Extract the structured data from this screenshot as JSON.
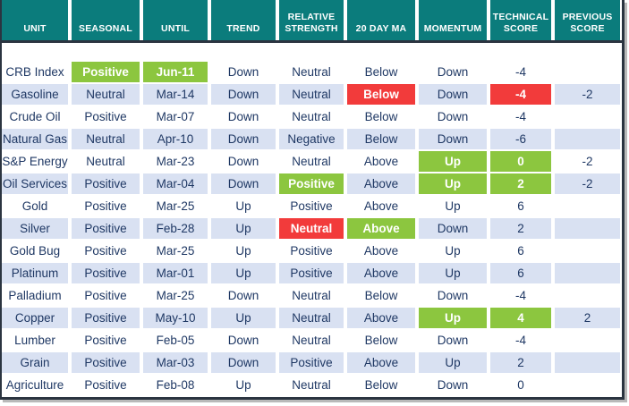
{
  "colors": {
    "header-teal": "#0b7c7c",
    "positive-green": "#8cc63f",
    "negative-red": "#f23b3b",
    "row-alt-blue": "#d9e1f2",
    "text-navy": "#1f3864",
    "frame-border": "#2b3440",
    "shadow-gray": "#b9b9b9"
  },
  "chart_data": {
    "type": "table",
    "columns": [
      {
        "key": "unit",
        "label": "UNIT"
      },
      {
        "key": "seasonal",
        "label": "SEASONAL"
      },
      {
        "key": "until",
        "label": "UNTIL"
      },
      {
        "key": "trend",
        "label": "TREND"
      },
      {
        "key": "relative-strength",
        "label": "RELATIVE STRENGTH"
      },
      {
        "key": "20-day-ma",
        "label": "20 DAY MA"
      },
      {
        "key": "momentum",
        "label": "MOMENTUM"
      },
      {
        "key": "technical-score",
        "label": "TECHNICAL SCORE"
      },
      {
        "key": "previous-score",
        "label": "PREVIOUS SCORE"
      }
    ],
    "rows": [
      {
        "cells": [
          {
            "text": "CRB Index",
            "style": "plain"
          },
          {
            "text": "Positive",
            "style": "green"
          },
          {
            "text": "Jun-11",
            "style": "green"
          },
          {
            "text": "Down",
            "style": "plain"
          },
          {
            "text": "Neutral",
            "style": "plain"
          },
          {
            "text": "Below",
            "style": "plain"
          },
          {
            "text": "Down",
            "style": "plain"
          },
          {
            "text": "-4",
            "style": "plain"
          },
          {
            "text": "",
            "style": "plain"
          }
        ]
      },
      {
        "cells": [
          {
            "text": "Gasoline",
            "style": "plain"
          },
          {
            "text": "Neutral",
            "style": "plain"
          },
          {
            "text": "Mar-14",
            "style": "plain"
          },
          {
            "text": "Down",
            "style": "plain"
          },
          {
            "text": "Neutral",
            "style": "plain"
          },
          {
            "text": "Below",
            "style": "red"
          },
          {
            "text": "Down",
            "style": "plain"
          },
          {
            "text": "-4",
            "style": "red"
          },
          {
            "text": "-2",
            "style": "plain"
          }
        ]
      },
      {
        "cells": [
          {
            "text": "Crude Oil",
            "style": "plain"
          },
          {
            "text": "Positive",
            "style": "plain"
          },
          {
            "text": "Mar-07",
            "style": "plain"
          },
          {
            "text": "Down",
            "style": "plain"
          },
          {
            "text": "Neutral",
            "style": "plain"
          },
          {
            "text": "Below",
            "style": "plain"
          },
          {
            "text": "Down",
            "style": "plain"
          },
          {
            "text": "-4",
            "style": "plain"
          },
          {
            "text": "",
            "style": "plain"
          }
        ]
      },
      {
        "cells": [
          {
            "text": "Natural Gas",
            "style": "plain"
          },
          {
            "text": "Neutral",
            "style": "plain"
          },
          {
            "text": "Apr-10",
            "style": "plain"
          },
          {
            "text": "Down",
            "style": "plain"
          },
          {
            "text": "Negative",
            "style": "plain"
          },
          {
            "text": "Below",
            "style": "plain"
          },
          {
            "text": "Down",
            "style": "plain"
          },
          {
            "text": "-6",
            "style": "plain"
          },
          {
            "text": "",
            "style": "plain"
          }
        ]
      },
      {
        "cells": [
          {
            "text": "S&P Energy",
            "style": "plain"
          },
          {
            "text": "Neutral",
            "style": "plain"
          },
          {
            "text": "Mar-23",
            "style": "plain"
          },
          {
            "text": "Down",
            "style": "plain"
          },
          {
            "text": "Neutral",
            "style": "plain"
          },
          {
            "text": "Above",
            "style": "plain"
          },
          {
            "text": "Up",
            "style": "green"
          },
          {
            "text": "0",
            "style": "green"
          },
          {
            "text": "-2",
            "style": "plain"
          }
        ]
      },
      {
        "cells": [
          {
            "text": "Oil Services",
            "style": "plain"
          },
          {
            "text": "Positive",
            "style": "plain"
          },
          {
            "text": "Mar-04",
            "style": "plain"
          },
          {
            "text": "Down",
            "style": "plain"
          },
          {
            "text": "Positive",
            "style": "green"
          },
          {
            "text": "Above",
            "style": "plain"
          },
          {
            "text": "Up",
            "style": "green"
          },
          {
            "text": "2",
            "style": "green"
          },
          {
            "text": "-2",
            "style": "plain"
          }
        ]
      },
      {
        "cells": [
          {
            "text": "Gold",
            "style": "plain"
          },
          {
            "text": "Positive",
            "style": "plain"
          },
          {
            "text": "Mar-25",
            "style": "plain"
          },
          {
            "text": "Up",
            "style": "plain"
          },
          {
            "text": "Positive",
            "style": "plain"
          },
          {
            "text": "Above",
            "style": "plain"
          },
          {
            "text": "Up",
            "style": "plain"
          },
          {
            "text": "6",
            "style": "plain"
          },
          {
            "text": "",
            "style": "plain"
          }
        ]
      },
      {
        "cells": [
          {
            "text": "Silver",
            "style": "plain"
          },
          {
            "text": "Positive",
            "style": "plain"
          },
          {
            "text": "Feb-28",
            "style": "plain"
          },
          {
            "text": "Up",
            "style": "plain"
          },
          {
            "text": "Neutral",
            "style": "red"
          },
          {
            "text": "Above",
            "style": "green"
          },
          {
            "text": "Down",
            "style": "plain"
          },
          {
            "text": "2",
            "style": "plain"
          },
          {
            "text": "",
            "style": "plain"
          }
        ]
      },
      {
        "cells": [
          {
            "text": "Gold Bug",
            "style": "plain"
          },
          {
            "text": "Positive",
            "style": "plain"
          },
          {
            "text": "Mar-25",
            "style": "plain"
          },
          {
            "text": "Up",
            "style": "plain"
          },
          {
            "text": "Positive",
            "style": "plain"
          },
          {
            "text": "Above",
            "style": "plain"
          },
          {
            "text": "Up",
            "style": "plain"
          },
          {
            "text": "6",
            "style": "plain"
          },
          {
            "text": "",
            "style": "plain"
          }
        ]
      },
      {
        "cells": [
          {
            "text": "Platinum",
            "style": "plain"
          },
          {
            "text": "Positive",
            "style": "plain"
          },
          {
            "text": "Mar-01",
            "style": "plain"
          },
          {
            "text": "Up",
            "style": "plain"
          },
          {
            "text": "Positive",
            "style": "plain"
          },
          {
            "text": "Above",
            "style": "plain"
          },
          {
            "text": "Up",
            "style": "plain"
          },
          {
            "text": "6",
            "style": "plain"
          },
          {
            "text": "",
            "style": "plain"
          }
        ]
      },
      {
        "cells": [
          {
            "text": "Palladium",
            "style": "plain"
          },
          {
            "text": "Positive",
            "style": "plain"
          },
          {
            "text": "Mar-25",
            "style": "plain"
          },
          {
            "text": "Down",
            "style": "plain"
          },
          {
            "text": "Neutral",
            "style": "plain"
          },
          {
            "text": "Below",
            "style": "plain"
          },
          {
            "text": "Down",
            "style": "plain"
          },
          {
            "text": "-4",
            "style": "plain"
          },
          {
            "text": "",
            "style": "plain"
          }
        ]
      },
      {
        "cells": [
          {
            "text": "Copper",
            "style": "plain"
          },
          {
            "text": "Positive",
            "style": "plain"
          },
          {
            "text": "May-10",
            "style": "plain"
          },
          {
            "text": "Up",
            "style": "plain"
          },
          {
            "text": "Neutral",
            "style": "plain"
          },
          {
            "text": "Above",
            "style": "plain"
          },
          {
            "text": "Up",
            "style": "green"
          },
          {
            "text": "4",
            "style": "green"
          },
          {
            "text": "2",
            "style": "plain"
          }
        ]
      },
      {
        "cells": [
          {
            "text": "Lumber",
            "style": "plain"
          },
          {
            "text": "Positive",
            "style": "plain"
          },
          {
            "text": "Feb-05",
            "style": "plain"
          },
          {
            "text": "Down",
            "style": "plain"
          },
          {
            "text": "Neutral",
            "style": "plain"
          },
          {
            "text": "Below",
            "style": "plain"
          },
          {
            "text": "Down",
            "style": "plain"
          },
          {
            "text": "-4",
            "style": "plain"
          },
          {
            "text": "",
            "style": "plain"
          }
        ]
      },
      {
        "cells": [
          {
            "text": "Grain",
            "style": "plain"
          },
          {
            "text": "Positive",
            "style": "plain"
          },
          {
            "text": "Mar-03",
            "style": "plain"
          },
          {
            "text": "Down",
            "style": "plain"
          },
          {
            "text": "Positive",
            "style": "plain"
          },
          {
            "text": "Above",
            "style": "plain"
          },
          {
            "text": "Up",
            "style": "plain"
          },
          {
            "text": "2",
            "style": "plain"
          },
          {
            "text": "",
            "style": "plain"
          }
        ]
      },
      {
        "cells": [
          {
            "text": "Agriculture",
            "style": "plain"
          },
          {
            "text": "Positive",
            "style": "plain"
          },
          {
            "text": "Feb-08",
            "style": "plain"
          },
          {
            "text": "Up",
            "style": "plain"
          },
          {
            "text": "Neutral",
            "style": "plain"
          },
          {
            "text": "Below",
            "style": "plain"
          },
          {
            "text": "Down",
            "style": "plain"
          },
          {
            "text": "0",
            "style": "plain"
          },
          {
            "text": "",
            "style": "plain"
          }
        ]
      }
    ]
  }
}
